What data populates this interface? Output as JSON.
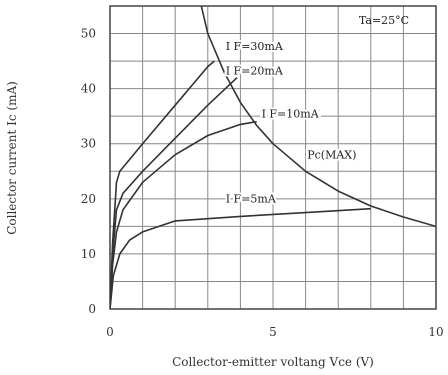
{
  "chart_data": {
    "type": "line",
    "xlabel": "Collector-emitter voltang Vce (V)",
    "ylabel": "Collector current Ic (mA)",
    "xlim": [
      0,
      10
    ],
    "ylim": [
      0,
      55
    ],
    "xticks": [
      "0",
      "5",
      "10"
    ],
    "yticks": [
      "0",
      "10",
      "20",
      "30",
      "40",
      "50"
    ],
    "grid": true,
    "annotation": "Ta=25°C",
    "series": [
      {
        "name": "IF=30mA",
        "x": [
          0,
          0.08,
          0.2,
          0.3,
          1.0,
          2.0,
          3.0,
          3.2
        ],
        "y": [
          0,
          12,
          23,
          25,
          30,
          37,
          44,
          45
        ]
      },
      {
        "name": "IF=20mA",
        "x": [
          0,
          0.08,
          0.2,
          0.4,
          1.0,
          2.0,
          3.0,
          3.9
        ],
        "y": [
          0,
          10,
          18,
          21,
          25,
          31,
          37,
          42
        ]
      },
      {
        "name": "IF=10mA",
        "x": [
          0,
          0.08,
          0.2,
          0.4,
          1.0,
          2.0,
          3.0,
          4.0,
          4.5
        ],
        "y": [
          0,
          8,
          14,
          18,
          23,
          28,
          31.5,
          33.5,
          34
        ]
      },
      {
        "name": "IF=5mA",
        "x": [
          0,
          0.1,
          0.3,
          0.6,
          1.0,
          2.0,
          4.0,
          6.0,
          8.0
        ],
        "y": [
          0,
          6,
          10,
          12.5,
          14,
          16,
          16.8,
          17.5,
          18.2
        ]
      },
      {
        "name": "Pc(MAX)",
        "x": [
          2.8,
          3.0,
          3.5,
          4.0,
          4.5,
          5.0,
          6.0,
          7.0,
          8.0,
          9.0,
          10.0
        ],
        "y": [
          55,
          50,
          43,
          37.5,
          33.3,
          30,
          25,
          21.4,
          18.7,
          16.7,
          15
        ]
      }
    ],
    "labels": {
      "if30": "I F=30mA",
      "if20": "I F=20mA",
      "if10": "I F=10mA",
      "if5": "I F=5mA",
      "pc": "Pc(MAX)"
    }
  }
}
